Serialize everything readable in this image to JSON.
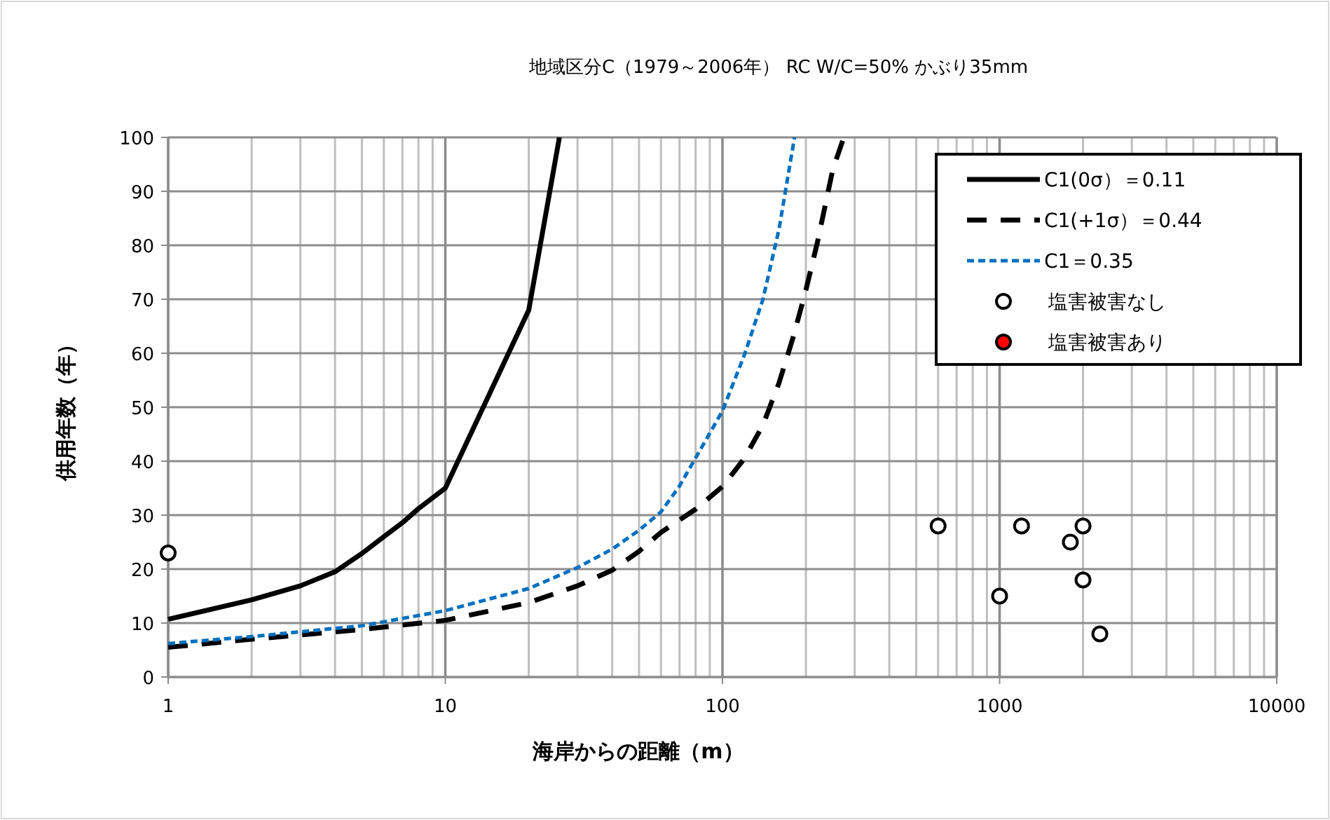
{
  "chart_data": {
    "type": "line",
    "title": "地域区分C（1979～2006年） RC W/C=50% かぶり35mm",
    "xlabel": "海岸からの距離（m）",
    "ylabel": "供用年数（年）",
    "log": "x",
    "grid": true,
    "legend": "top right",
    "xlim": [
      1,
      10000
    ],
    "xticks": [
      1,
      10,
      100,
      1000,
      10000
    ],
    "ylim": [
      0,
      100
    ],
    "yticks": [
      0,
      10,
      20,
      30,
      40,
      50,
      60,
      70,
      80,
      90,
      100
    ],
    "series": [
      {
        "name": "C1(0σ）＝0.11",
        "line_style": "solid",
        "color": "#000000",
        "x": [
          1,
          2,
          3,
          4,
          5,
          6,
          7,
          8,
          10,
          20,
          25.8
        ],
        "values": [
          10.7,
          14.3,
          16.9,
          19.5,
          22.9,
          26,
          28.6,
          31.2,
          35,
          68,
          100
        ]
      },
      {
        "name": "C1(+1σ）＝0.44",
        "line_style": "dashed",
        "color": "#000000",
        "x": [
          1,
          2,
          5,
          10,
          20,
          30,
          40,
          50,
          60,
          80,
          100,
          120,
          140,
          160,
          180,
          200,
          220,
          250,
          274
        ],
        "values": [
          5.5,
          7,
          8.8,
          10.5,
          13.8,
          16.9,
          19.8,
          23.3,
          26.8,
          31.1,
          35.3,
          40.5,
          46.7,
          54.5,
          63,
          71.7,
          80.5,
          94,
          100
        ]
      },
      {
        "name": "C1＝0.35",
        "line_style": "dotted",
        "color": "#0070c0",
        "x": [
          1,
          2,
          5,
          10,
          20,
          30,
          40,
          50,
          60,
          70,
          80,
          100,
          120,
          140,
          160,
          182
        ],
        "values": [
          6.2,
          7.5,
          9.5,
          12.3,
          16.4,
          20.3,
          23.7,
          27.2,
          30.6,
          35.4,
          40.6,
          49.3,
          59.7,
          70,
          83,
          100
        ]
      },
      {
        "name": "塩害被害なし",
        "type": "scatter",
        "marker": "circle",
        "color": "#ffffff",
        "x": [
          1,
          600,
          1000,
          1200,
          1800,
          2000,
          2000,
          2300
        ],
        "values": [
          23,
          28,
          15,
          28,
          25,
          28,
          18,
          8
        ]
      },
      {
        "name": "塩害被害あり",
        "type": "scatter",
        "marker": "circle",
        "color": "#ff0000"
      }
    ]
  }
}
